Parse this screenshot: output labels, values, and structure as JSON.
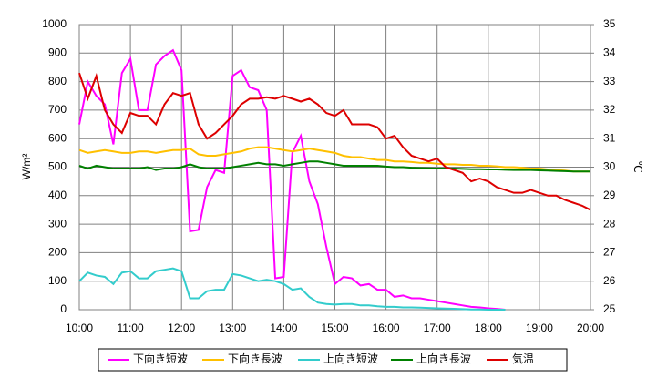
{
  "chart_data": {
    "type": "line",
    "y_label": "W/m²",
    "y2_label": "℃",
    "categories": [
      "10:00",
      null,
      null,
      null,
      null,
      null,
      "11:00",
      null,
      null,
      null,
      null,
      null,
      "12:00",
      null,
      null,
      null,
      null,
      null,
      "13:00",
      null,
      null,
      null,
      null,
      null,
      "14:00",
      null,
      null,
      null,
      null,
      null,
      "15:00",
      null,
      null,
      null,
      null,
      null,
      "16:00",
      null,
      null,
      null,
      null,
      null,
      "17:00",
      null,
      null,
      null,
      null,
      null,
      "18:00",
      null,
      null,
      null,
      null,
      null,
      "19:00",
      null,
      null,
      null,
      null,
      null,
      "20:00"
    ],
    "ylim": [
      0,
      1000
    ],
    "yticks": [
      0,
      100,
      200,
      300,
      400,
      500,
      600,
      700,
      800,
      900,
      1000
    ],
    "y2lim": [
      25,
      35
    ],
    "y2ticks": [
      25,
      26,
      27,
      28,
      29,
      30,
      31,
      32,
      33,
      34,
      35
    ],
    "grid": true,
    "legend": "bottom",
    "series": [
      {
        "name": "下向き短波",
        "color": "#ff00ff",
        "values": [
          650,
          800,
          750,
          720,
          580,
          830,
          880,
          700,
          700,
          860,
          890,
          910,
          840,
          275,
          280,
          430,
          490,
          480,
          820,
          840,
          780,
          770,
          700,
          110,
          115,
          550,
          610,
          450,
          370,
          220,
          90,
          115,
          110,
          85,
          90,
          70,
          70,
          45,
          50,
          40,
          40,
          35,
          30,
          25,
          20,
          15,
          10,
          8,
          5,
          3,
          0,
          null,
          null,
          null,
          null,
          null,
          null,
          null,
          null,
          null,
          null
        ]
      },
      {
        "name": "下向き長波",
        "color": "#ffc000",
        "values": [
          560,
          550,
          555,
          560,
          555,
          550,
          550,
          555,
          555,
          550,
          555,
          560,
          560,
          565,
          545,
          540,
          540,
          545,
          550,
          555,
          565,
          570,
          570,
          565,
          560,
          555,
          560,
          565,
          560,
          555,
          550,
          540,
          535,
          535,
          530,
          525,
          525,
          520,
          520,
          518,
          515,
          515,
          512,
          510,
          510,
          508,
          508,
          505,
          505,
          503,
          500,
          500,
          498,
          495,
          495,
          492,
          490,
          488,
          485,
          485,
          485
        ]
      },
      {
        "name": "上向き短波",
        "color": "#33cccc",
        "values": [
          100,
          130,
          120,
          115,
          90,
          130,
          135,
          110,
          110,
          135,
          140,
          145,
          135,
          40,
          40,
          65,
          70,
          70,
          125,
          120,
          110,
          100,
          105,
          100,
          90,
          70,
          75,
          45,
          25,
          20,
          18,
          20,
          20,
          15,
          15,
          12,
          10,
          10,
          8,
          8,
          7,
          6,
          5,
          4,
          3,
          2,
          1,
          1,
          0,
          0,
          0,
          null,
          null,
          null,
          null,
          null,
          null,
          null,
          null,
          null,
          null
        ]
      },
      {
        "name": "上向き長波",
        "color": "#008000",
        "values": [
          505,
          495,
          505,
          500,
          495,
          495,
          495,
          495,
          500,
          490,
          495,
          495,
          500,
          510,
          500,
          495,
          495,
          495,
          500,
          505,
          510,
          515,
          510,
          510,
          505,
          510,
          515,
          520,
          520,
          515,
          510,
          505,
          505,
          505,
          505,
          505,
          502,
          500,
          500,
          498,
          497,
          496,
          495,
          495,
          495,
          494,
          493,
          493,
          492,
          492,
          491,
          490,
          490,
          490,
          489,
          488,
          487,
          486,
          485,
          485,
          485
        ]
      },
      {
        "name": "気温",
        "color": "#dd0000",
        "axis": "y2",
        "values": [
          33.3,
          32.4,
          33.2,
          32.0,
          31.5,
          31.2,
          31.9,
          31.8,
          31.8,
          31.5,
          32.2,
          32.6,
          32.5,
          32.6,
          31.5,
          31.0,
          31.2,
          31.5,
          31.8,
          32.2,
          32.4,
          32.4,
          32.45,
          32.4,
          32.5,
          32.4,
          32.3,
          32.4,
          32.2,
          31.9,
          31.8,
          32.0,
          31.5,
          31.5,
          31.5,
          31.4,
          31.0,
          31.1,
          30.7,
          30.4,
          30.3,
          30.2,
          30.3,
          30.0,
          29.9,
          29.8,
          29.5,
          29.6,
          29.5,
          29.3,
          29.2,
          29.1,
          29.1,
          29.2,
          29.1,
          29.0,
          29.0,
          28.85,
          28.75,
          28.65,
          28.5
        ]
      }
    ]
  }
}
